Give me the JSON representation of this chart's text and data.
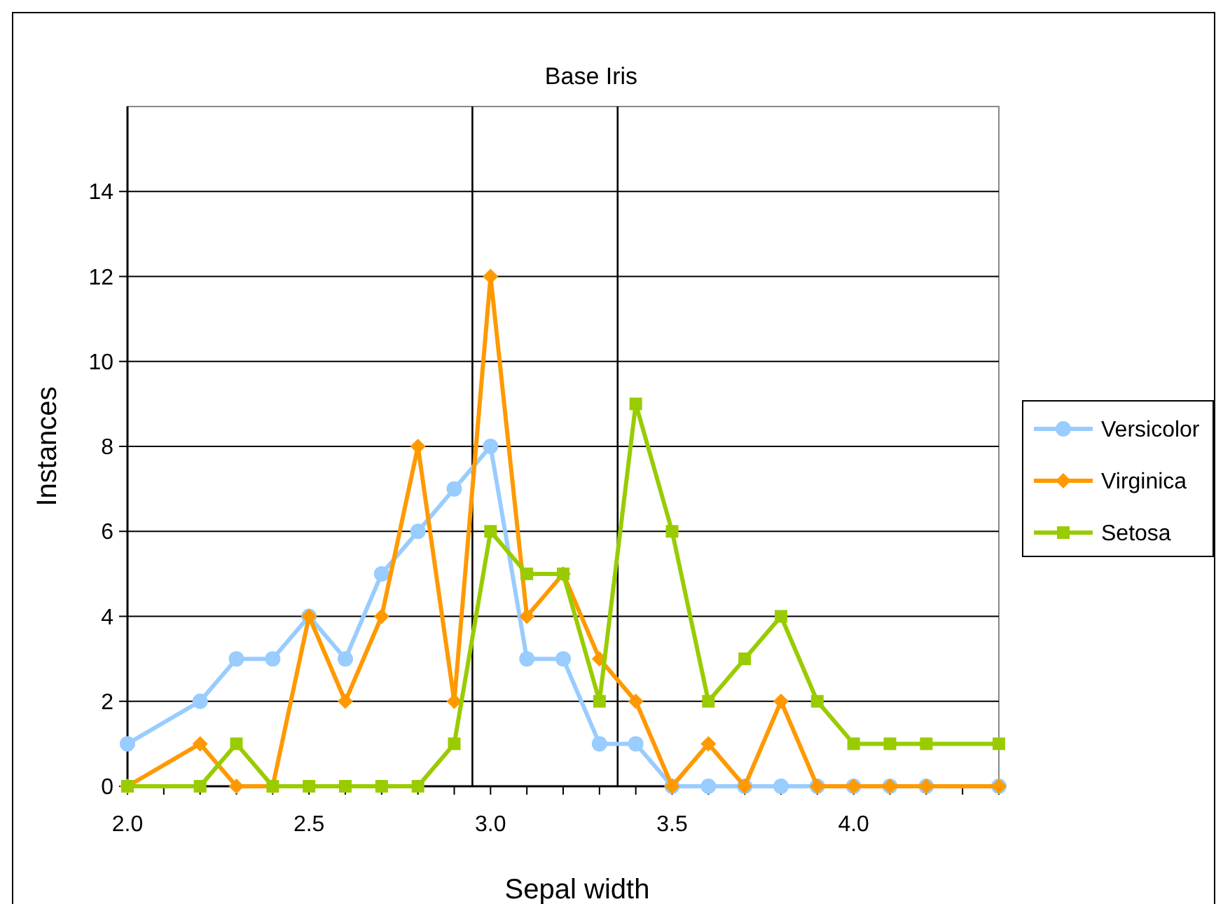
{
  "chart_data": {
    "type": "line",
    "title": "Base Iris",
    "xlabel": "Sepal width",
    "ylabel": "Instances",
    "x": [
      2.0,
      2.2,
      2.3,
      2.4,
      2.5,
      2.6,
      2.7,
      2.8,
      2.9,
      3.0,
      3.1,
      3.2,
      3.3,
      3.4,
      3.5,
      3.6,
      3.7,
      3.8,
      3.9,
      4.0,
      4.1,
      4.2,
      4.4
    ],
    "series": [
      {
        "name": "Versicolor",
        "color": "#99ccff",
        "marker": "circle",
        "values": [
          1,
          2,
          3,
          3,
          4,
          3,
          5,
          6,
          7,
          8,
          3,
          3,
          1,
          1,
          0,
          0,
          0,
          0,
          0,
          0,
          0,
          0,
          0
        ]
      },
      {
        "name": "Virginica",
        "color": "#ff9900",
        "marker": "diamond",
        "values": [
          0,
          1,
          0,
          0,
          4,
          2,
          4,
          8,
          2,
          12,
          4,
          5,
          3,
          2,
          0,
          1,
          0,
          2,
          0,
          0,
          0,
          0,
          0
        ]
      },
      {
        "name": "Setosa",
        "color": "#99cc00",
        "marker": "square",
        "values": [
          0,
          0,
          1,
          0,
          0,
          0,
          0,
          0,
          1,
          6,
          5,
          5,
          2,
          9,
          6,
          2,
          3,
          4,
          2,
          1,
          1,
          1,
          1
        ]
      }
    ],
    "xlim": [
      2.0,
      4.4
    ],
    "xticks": [
      {
        "value": 2.0,
        "label": "2.0"
      },
      {
        "value": 2.1,
        "label": null
      },
      {
        "value": 2.2,
        "label": null
      },
      {
        "value": 2.3,
        "label": null
      },
      {
        "value": 2.4,
        "label": null
      },
      {
        "value": 2.5,
        "label": "2.5"
      },
      {
        "value": 2.6,
        "label": null
      },
      {
        "value": 2.7,
        "label": null
      },
      {
        "value": 2.8,
        "label": null
      },
      {
        "value": 2.9,
        "label": null
      },
      {
        "value": 3.0,
        "label": "3.0"
      },
      {
        "value": 3.1,
        "label": null
      },
      {
        "value": 3.2,
        "label": null
      },
      {
        "value": 3.3,
        "label": null
      },
      {
        "value": 3.4,
        "label": null
      },
      {
        "value": 3.5,
        "label": "3.5"
      },
      {
        "value": 3.6,
        "label": null
      },
      {
        "value": 3.7,
        "label": null
      },
      {
        "value": 3.8,
        "label": null
      },
      {
        "value": 3.9,
        "label": null
      },
      {
        "value": 4.0,
        "label": "4.0"
      },
      {
        "value": 4.1,
        "label": null
      },
      {
        "value": 4.2,
        "label": null
      },
      {
        "value": 4.3,
        "label": null
      },
      {
        "value": 4.4,
        "label": null
      }
    ],
    "ylim": [
      0,
      16
    ],
    "yticks": [
      0,
      2,
      4,
      6,
      8,
      10,
      12,
      14
    ],
    "ref_lines": [
      {
        "axis": "x",
        "value": 2.95,
        "color": "#000000"
      },
      {
        "axis": "x",
        "value": 3.35,
        "color": "#000000"
      }
    ],
    "grid": "y",
    "legend": "right"
  }
}
